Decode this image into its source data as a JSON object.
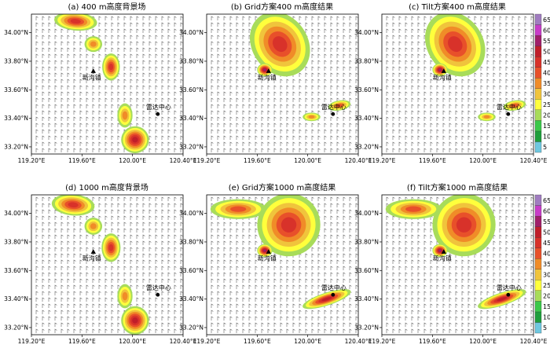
{
  "chart_data": [
    {
      "type": "heatmap",
      "title": "(a) 400 m高度背景场",
      "xlim": [
        119.2,
        120.4
      ],
      "ylim": [
        33.15,
        34.13
      ],
      "x_ticks": [
        "119.20°E",
        "119.60°E",
        "120.00°E",
        "120.40°E"
      ],
      "y_ticks": [
        "33.20°N",
        "33.40°N",
        "33.60°N",
        "33.80°N",
        "34.00°N"
      ],
      "markers": [
        {
          "label": "新沟镇",
          "symbol": "triangle",
          "lon": 119.69,
          "lat": 33.73
        },
        {
          "label": "雷达中心",
          "symbol": "circle",
          "lon": 120.2,
          "lat": 33.43
        }
      ],
      "echo_cells": [
        {
          "lon": 119.55,
          "lat": 34.08,
          "rx": 0.17,
          "ry": 0.065,
          "rot": 5,
          "peak": 45
        },
        {
          "lon": 119.69,
          "lat": 33.92,
          "rx": 0.07,
          "ry": 0.055,
          "rot": 0,
          "peak": 35
        },
        {
          "lon": 119.83,
          "lat": 33.76,
          "rx": 0.07,
          "ry": 0.095,
          "rot": 0,
          "peak": 45
        },
        {
          "lon": 119.94,
          "lat": 33.42,
          "rx": 0.06,
          "ry": 0.085,
          "rot": 0,
          "peak": 35
        },
        {
          "lon": 120.02,
          "lat": 33.25,
          "rx": 0.11,
          "ry": 0.095,
          "rot": 0,
          "peak": 50
        }
      ]
    },
    {
      "type": "heatmap",
      "title": "(b) Grid方案400 m高度结果",
      "xlim": [
        119.2,
        120.4
      ],
      "ylim": [
        33.15,
        34.13
      ],
      "x_ticks": [
        "119.20°E",
        "119.60°E",
        "120.00°E",
        "120.40°E"
      ],
      "y_ticks": [
        "33.20°N",
        "33.40°N",
        "33.60°N",
        "33.80°N",
        "34.00°N"
      ],
      "markers": [
        {
          "label": "新沟镇",
          "symbol": "triangle",
          "lon": 119.69,
          "lat": 33.73
        },
        {
          "label": "雷达中心",
          "symbol": "circle",
          "lon": 120.2,
          "lat": 33.43
        }
      ],
      "echo_cells": [
        {
          "lon": 119.78,
          "lat": 33.92,
          "rx": 0.22,
          "ry": 0.24,
          "rot": -35,
          "peak": 45
        },
        {
          "lon": 119.66,
          "lat": 33.74,
          "rx": 0.06,
          "ry": 0.045,
          "rot": 0,
          "peak": 55
        },
        {
          "lon": 120.25,
          "lat": 33.49,
          "rx": 0.09,
          "ry": 0.035,
          "rot": -10,
          "peak": 40
        },
        {
          "lon": 120.03,
          "lat": 33.41,
          "rx": 0.07,
          "ry": 0.03,
          "rot": 0,
          "peak": 35
        }
      ]
    },
    {
      "type": "heatmap",
      "title": "(c) Tilt方案400 m高度结果",
      "xlim": [
        119.2,
        120.4
      ],
      "ylim": [
        33.15,
        34.13
      ],
      "x_ticks": [
        "119.20°E",
        "119.60°E",
        "120.00°E",
        "120.40°E"
      ],
      "y_ticks": [
        "33.20°N",
        "33.40°N",
        "33.60°N",
        "33.80°N",
        "34.00°N"
      ],
      "markers": [
        {
          "label": "新沟镇",
          "symbol": "triangle",
          "lon": 119.69,
          "lat": 33.73
        },
        {
          "label": "雷达中心",
          "symbol": "circle",
          "lon": 120.2,
          "lat": 33.43
        }
      ],
      "echo_cells": [
        {
          "lon": 119.78,
          "lat": 33.92,
          "rx": 0.22,
          "ry": 0.24,
          "rot": -35,
          "peak": 45
        },
        {
          "lon": 119.66,
          "lat": 33.74,
          "rx": 0.06,
          "ry": 0.045,
          "rot": 0,
          "peak": 55
        },
        {
          "lon": 120.25,
          "lat": 33.49,
          "rx": 0.09,
          "ry": 0.035,
          "rot": -10,
          "peak": 40
        },
        {
          "lon": 120.03,
          "lat": 33.41,
          "rx": 0.07,
          "ry": 0.03,
          "rot": 0,
          "peak": 35
        }
      ]
    },
    {
      "type": "heatmap",
      "title": "(d) 1000 m高度背景场",
      "xlim": [
        119.2,
        120.4
      ],
      "ylim": [
        33.15,
        34.13
      ],
      "x_ticks": [
        "119.20°E",
        "119.60°E",
        "120.00°E",
        "120.40°E"
      ],
      "y_ticks": [
        "33.20°N",
        "33.40°N",
        "33.60°N",
        "33.80°N",
        "34.00°N"
      ],
      "markers": [
        {
          "label": "新沟镇",
          "symbol": "triangle",
          "lon": 119.69,
          "lat": 33.73
        },
        {
          "label": "雷达中心",
          "symbol": "circle",
          "lon": 120.2,
          "lat": 33.43
        }
      ],
      "echo_cells": [
        {
          "lon": 119.53,
          "lat": 34.06,
          "rx": 0.17,
          "ry": 0.075,
          "rot": 5,
          "peak": 45
        },
        {
          "lon": 119.69,
          "lat": 33.91,
          "rx": 0.07,
          "ry": 0.06,
          "rot": 0,
          "peak": 35
        },
        {
          "lon": 119.83,
          "lat": 33.76,
          "rx": 0.075,
          "ry": 0.1,
          "rot": 0,
          "peak": 45
        },
        {
          "lon": 119.94,
          "lat": 33.42,
          "rx": 0.06,
          "ry": 0.085,
          "rot": 0,
          "peak": 35
        },
        {
          "lon": 120.02,
          "lat": 33.25,
          "rx": 0.11,
          "ry": 0.1,
          "rot": 0,
          "peak": 50
        }
      ]
    },
    {
      "type": "heatmap",
      "title": "(e) Grid方案1000 m高度结果",
      "xlim": [
        119.2,
        120.4
      ],
      "ylim": [
        33.15,
        34.13
      ],
      "x_ticks": [
        "119.20°E",
        "119.60°E",
        "120.00°E",
        "120.40°E"
      ],
      "y_ticks": [
        "33.20°N",
        "33.40°N",
        "33.60°N",
        "33.80°N",
        "34.00°N"
      ],
      "markers": [
        {
          "label": "新沟镇",
          "symbol": "triangle",
          "lon": 119.69,
          "lat": 33.73
        },
        {
          "label": "雷达中心",
          "symbol": "circle",
          "lon": 120.2,
          "lat": 33.43
        }
      ],
      "echo_cells": [
        {
          "lon": 119.45,
          "lat": 34.03,
          "rx": 0.22,
          "ry": 0.07,
          "rot": 0,
          "peak": 40
        },
        {
          "lon": 119.85,
          "lat": 33.92,
          "rx": 0.25,
          "ry": 0.22,
          "rot": -35,
          "peak": 45
        },
        {
          "lon": 119.66,
          "lat": 33.74,
          "rx": 0.06,
          "ry": 0.045,
          "rot": 0,
          "peak": 55
        },
        {
          "lon": 120.15,
          "lat": 33.4,
          "rx": 0.2,
          "ry": 0.045,
          "rot": -18,
          "peak": 50
        }
      ]
    },
    {
      "type": "heatmap",
      "title": "(f) Tilt方案1000 m高度结果",
      "xlim": [
        119.2,
        120.4
      ],
      "ylim": [
        33.15,
        34.13
      ],
      "x_ticks": [
        "119.20°E",
        "119.60°E",
        "120.00°E",
        "120.40°E"
      ],
      "y_ticks": [
        "33.20°N",
        "33.40°N",
        "33.60°N",
        "33.80°N",
        "34.00°N"
      ],
      "markers": [
        {
          "label": "新沟镇",
          "symbol": "triangle",
          "lon": 119.69,
          "lat": 33.73
        },
        {
          "label": "雷达中心",
          "symbol": "circle",
          "lon": 120.2,
          "lat": 33.43
        }
      ],
      "echo_cells": [
        {
          "lon": 119.45,
          "lat": 34.03,
          "rx": 0.22,
          "ry": 0.07,
          "rot": 0,
          "peak": 40
        },
        {
          "lon": 119.85,
          "lat": 33.92,
          "rx": 0.25,
          "ry": 0.22,
          "rot": -35,
          "peak": 45
        },
        {
          "lon": 119.66,
          "lat": 33.74,
          "rx": 0.06,
          "ry": 0.045,
          "rot": 0,
          "peak": 55
        },
        {
          "lon": 120.15,
          "lat": 33.4,
          "rx": 0.2,
          "ry": 0.045,
          "rot": -18,
          "peak": 50
        }
      ]
    }
  ],
  "colorbar": {
    "levels": [
      5,
      10,
      15,
      20,
      25,
      30,
      35,
      40,
      45,
      50,
      55,
      60,
      65
    ],
    "colors": [
      "#6FC8E0",
      "#1E9E3C",
      "#3AC84A",
      "#A8DC5A",
      "#FFFF3C",
      "#F0C43C",
      "#F08C28",
      "#E8502A",
      "#D8322A",
      "#C01E2A",
      "#A01E6A",
      "#C83CC8",
      "#A07CC0"
    ]
  }
}
